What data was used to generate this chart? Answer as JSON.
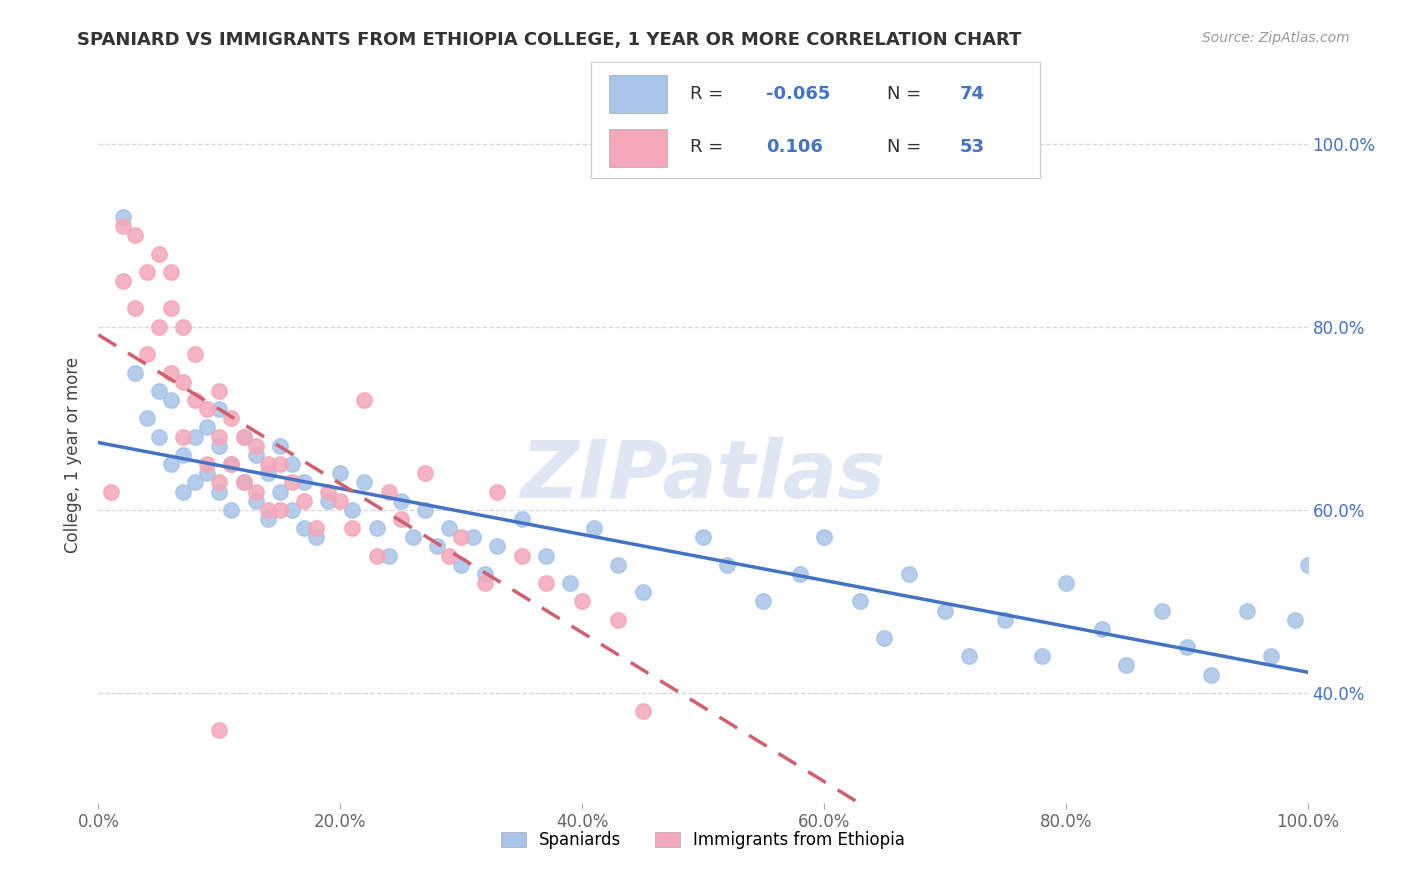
{
  "title": "SPANIARD VS IMMIGRANTS FROM ETHIOPIA COLLEGE, 1 YEAR OR MORE CORRELATION CHART",
  "source_text": "Source: ZipAtlas.com",
  "ylabel": "College, 1 year or more",
  "xmin": 0.0,
  "xmax": 1.0,
  "ymin": 0.28,
  "ymax": 1.04,
  "x_tick_labels": [
    "0.0%",
    "20.0%",
    "40.0%",
    "60.0%",
    "80.0%",
    "100.0%"
  ],
  "x_tick_vals": [
    0.0,
    0.2,
    0.4,
    0.6,
    0.8,
    1.0
  ],
  "y_tick_labels": [
    "40.0%",
    "60.0%",
    "80.0%",
    "100.0%"
  ],
  "y_tick_vals": [
    0.4,
    0.6,
    0.8,
    1.0
  ],
  "blue_color": "#a8c4e8",
  "pink_color": "#f4a7b9",
  "blue_line_color": "#4472c4",
  "pink_line_color": "#d06070",
  "watermark": "ZIPatlas",
  "legend_label_blue": "Spaniards",
  "legend_label_pink": "Immigrants from Ethiopia",
  "background_color": "#ffffff",
  "grid_color": "#cccccc",
  "blue_scatter_x": [
    0.02,
    0.03,
    0.04,
    0.05,
    0.05,
    0.06,
    0.06,
    0.07,
    0.07,
    0.08,
    0.08,
    0.09,
    0.09,
    0.1,
    0.1,
    0.1,
    0.11,
    0.11,
    0.12,
    0.12,
    0.13,
    0.13,
    0.14,
    0.14,
    0.15,
    0.15,
    0.16,
    0.16,
    0.17,
    0.17,
    0.18,
    0.19,
    0.2,
    0.21,
    0.22,
    0.23,
    0.24,
    0.25,
    0.26,
    0.27,
    0.28,
    0.29,
    0.3,
    0.31,
    0.32,
    0.33,
    0.35,
    0.37,
    0.39,
    0.41,
    0.43,
    0.45,
    0.5,
    0.52,
    0.55,
    0.58,
    0.6,
    0.63,
    0.65,
    0.67,
    0.7,
    0.72,
    0.75,
    0.78,
    0.8,
    0.83,
    0.85,
    0.88,
    0.9,
    0.92,
    0.95,
    0.97,
    0.99,
    1.0
  ],
  "blue_scatter_y": [
    0.92,
    0.75,
    0.7,
    0.73,
    0.68,
    0.65,
    0.72,
    0.66,
    0.62,
    0.68,
    0.63,
    0.69,
    0.64,
    0.71,
    0.67,
    0.62,
    0.65,
    0.6,
    0.68,
    0.63,
    0.66,
    0.61,
    0.64,
    0.59,
    0.67,
    0.62,
    0.65,
    0.6,
    0.58,
    0.63,
    0.57,
    0.61,
    0.64,
    0.6,
    0.63,
    0.58,
    0.55,
    0.61,
    0.57,
    0.6,
    0.56,
    0.58,
    0.54,
    0.57,
    0.53,
    0.56,
    0.59,
    0.55,
    0.52,
    0.58,
    0.54,
    0.51,
    0.57,
    0.54,
    0.5,
    0.53,
    0.57,
    0.5,
    0.46,
    0.53,
    0.49,
    0.44,
    0.48,
    0.44,
    0.52,
    0.47,
    0.43,
    0.49,
    0.45,
    0.42,
    0.49,
    0.44,
    0.48,
    0.54
  ],
  "pink_scatter_x": [
    0.01,
    0.02,
    0.02,
    0.03,
    0.03,
    0.04,
    0.04,
    0.05,
    0.05,
    0.06,
    0.06,
    0.06,
    0.07,
    0.07,
    0.07,
    0.08,
    0.08,
    0.09,
    0.09,
    0.1,
    0.1,
    0.1,
    0.11,
    0.11,
    0.12,
    0.12,
    0.13,
    0.13,
    0.14,
    0.14,
    0.15,
    0.15,
    0.16,
    0.17,
    0.18,
    0.19,
    0.2,
    0.21,
    0.22,
    0.23,
    0.24,
    0.25,
    0.27,
    0.29,
    0.3,
    0.32,
    0.33,
    0.35,
    0.37,
    0.4,
    0.43,
    0.45,
    0.1
  ],
  "pink_scatter_y": [
    0.62,
    0.91,
    0.85,
    0.9,
    0.82,
    0.86,
    0.77,
    0.88,
    0.8,
    0.86,
    0.82,
    0.75,
    0.8,
    0.74,
    0.68,
    0.77,
    0.72,
    0.71,
    0.65,
    0.73,
    0.68,
    0.63,
    0.7,
    0.65,
    0.68,
    0.63,
    0.67,
    0.62,
    0.65,
    0.6,
    0.65,
    0.6,
    0.63,
    0.61,
    0.58,
    0.62,
    0.61,
    0.58,
    0.72,
    0.55,
    0.62,
    0.59,
    0.64,
    0.55,
    0.57,
    0.52,
    0.62,
    0.55,
    0.52,
    0.5,
    0.48,
    0.38,
    0.36
  ]
}
